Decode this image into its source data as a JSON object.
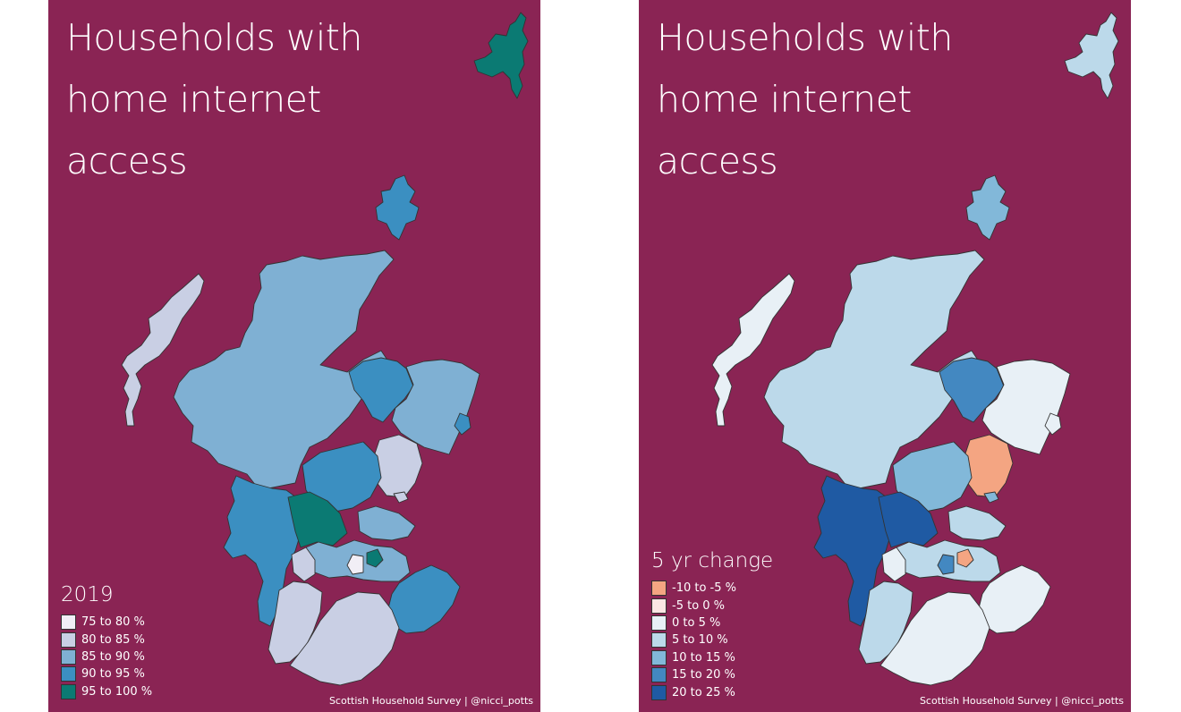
{
  "maps": [
    {
      "id": "left",
      "title_lines": [
        "Households with",
        "home internet",
        "access"
      ],
      "legend": {
        "title": "2019",
        "items": [
          {
            "label": "75 to 80 %",
            "color": "#f1eef6"
          },
          {
            "label": "80 to 85 %",
            "color": "#c9cfe4"
          },
          {
            "label": "85 to 90 %",
            "color": "#7fb0d3"
          },
          {
            "label": "90 to 95 %",
            "color": "#3b8fc1"
          },
          {
            "label": "95 to 100 %",
            "color": "#0b7a73"
          }
        ]
      },
      "source": "Scottish Household Survey | @nicci_potts",
      "regions": {
        "shetland": 4,
        "orkney": 3,
        "western_isles": 1,
        "highland": 2,
        "moray": 3,
        "aberdeenshire": 2,
        "aberdeen_city": 3,
        "angus": 1,
        "dundee": 1,
        "perth_kinross": 3,
        "argyll_bute": 3,
        "stirling": 4,
        "fife": 2,
        "central_belt": 2,
        "edinburgh": 4,
        "west_lothian": 0,
        "glasgow": 1,
        "ayrshire": 1,
        "borders": 3,
        "dumfries_galloway": 1
      }
    },
    {
      "id": "right",
      "title_lines": [
        "Households with",
        "home internet",
        "access"
      ],
      "legend": {
        "title": "5 yr change",
        "items": [
          {
            "label": "-10 to -5 %",
            "color": "#f4a582"
          },
          {
            "label": "-5 to 0 %",
            "color": "#fbe5e3"
          },
          {
            "label": "0 to 5 %",
            "color": "#e8f0f6"
          },
          {
            "label": "5 to 10 %",
            "color": "#bcd9ea"
          },
          {
            "label": "10 to 15 %",
            "color": "#82b8d9"
          },
          {
            "label": "15 to 20 %",
            "color": "#4388c1"
          },
          {
            "label": "20 to 25 %",
            "color": "#1f5aa3"
          }
        ]
      },
      "source": "Scottish Household Survey | @nicci_potts",
      "regions": {
        "shetland": 3,
        "orkney": 4,
        "western_isles": 2,
        "highland": 3,
        "moray": 5,
        "aberdeenshire": 2,
        "aberdeen_city": 2,
        "angus": 0,
        "dundee": 4,
        "perth_kinross": 4,
        "argyll_bute": 6,
        "stirling": 6,
        "fife": 3,
        "central_belt": 3,
        "edinburgh": 0,
        "west_lothian": 5,
        "glasgow": 2,
        "ayrshire": 3,
        "borders": 2,
        "dumfries_galloway": 2
      }
    }
  ]
}
